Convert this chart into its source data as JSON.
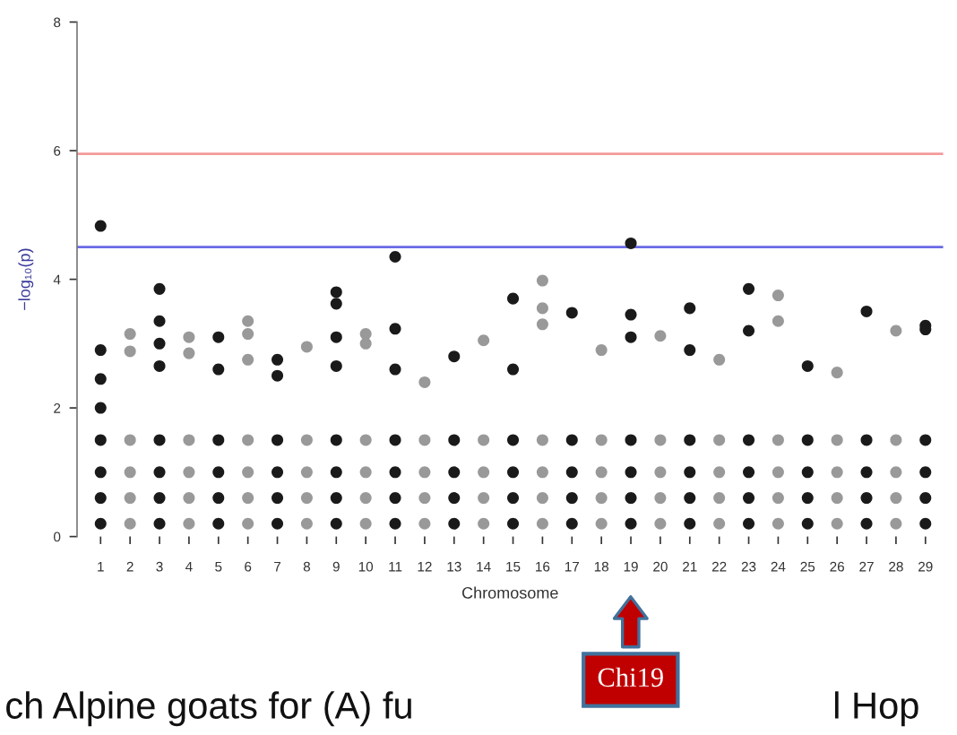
{
  "chart_data": {
    "type": "scatter",
    "xlabel": "Chromosome",
    "ylabel": "−log₁₀(p)",
    "categories": [
      "1",
      "2",
      "3",
      "4",
      "5",
      "6",
      "7",
      "8",
      "9",
      "10",
      "11",
      "12",
      "13",
      "14",
      "15",
      "16",
      "17",
      "18",
      "19",
      "20",
      "21",
      "22",
      "23",
      "24",
      "25",
      "26",
      "27",
      "28",
      "29"
    ],
    "ylim": [
      0,
      8
    ],
    "yticks": [
      0,
      2,
      4,
      6,
      8
    ],
    "marker": "circle",
    "grid": false,
    "legend": false,
    "ref_lines": [
      {
        "axis": "y",
        "value": 5.95,
        "color": "#f49a9a"
      },
      {
        "axis": "y",
        "value": 4.5,
        "color": "#6a6ae6"
      }
    ],
    "annotations": [
      "Chi19",
      "ch Alpine goats for (A) fu",
      "l Hop"
    ],
    "series": [
      {
        "color": "#1a1a1a",
        "x": [
          "1",
          "1",
          "1",
          "1",
          "1",
          "1",
          "1",
          "1",
          "3",
          "3",
          "3",
          "3",
          "3",
          "3",
          "3",
          "3",
          "5",
          "5",
          "5",
          "5",
          "5",
          "5",
          "7",
          "7",
          "7",
          "7",
          "7",
          "7",
          "9",
          "9",
          "9",
          "9",
          "9",
          "9",
          "9",
          "9",
          "11",
          "11",
          "11",
          "11",
          "11",
          "11",
          "11",
          "13",
          "13",
          "13",
          "13",
          "13",
          "15",
          "15",
          "15",
          "15",
          "15",
          "15",
          "17",
          "17",
          "17",
          "17",
          "17",
          "19",
          "19",
          "19",
          "19",
          "19",
          "19",
          "19",
          "21",
          "21",
          "21",
          "21",
          "21",
          "21",
          "23",
          "23",
          "23",
          "23",
          "23",
          "23",
          "25",
          "25",
          "25",
          "25",
          "25",
          "27",
          "27",
          "27",
          "27",
          "27",
          "29",
          "29",
          "29",
          "29",
          "29",
          "29"
        ],
        "values": [
          0.2,
          0.6,
          1.0,
          1.5,
          4.83,
          2.9,
          2.45,
          2.0,
          0.2,
          0.6,
          1.0,
          1.5,
          3.85,
          3.35,
          3.0,
          2.65,
          0.2,
          0.6,
          1.0,
          1.5,
          3.1,
          2.6,
          0.2,
          0.6,
          1.0,
          1.5,
          2.75,
          2.5,
          0.2,
          0.6,
          1.0,
          1.5,
          3.8,
          3.62,
          3.1,
          2.65,
          0.2,
          0.6,
          1.0,
          1.5,
          4.35,
          3.23,
          2.6,
          0.2,
          0.6,
          1.0,
          1.5,
          2.8,
          0.2,
          0.6,
          1.0,
          1.5,
          3.7,
          2.6,
          0.2,
          0.6,
          1.0,
          1.5,
          3.48,
          0.2,
          0.6,
          1.0,
          1.5,
          4.56,
          3.45,
          3.1,
          0.2,
          0.6,
          1.0,
          1.5,
          3.55,
          2.9,
          0.2,
          0.6,
          1.0,
          1.5,
          3.85,
          3.2,
          0.2,
          0.6,
          1.0,
          1.5,
          2.65,
          0.2,
          0.6,
          1.0,
          1.5,
          3.5,
          0.2,
          0.6,
          1.0,
          1.5,
          3.28,
          3.22
        ]
      },
      {
        "color": "#999999",
        "x": [
          "2",
          "2",
          "2",
          "2",
          "2",
          "2",
          "4",
          "4",
          "4",
          "4",
          "4",
          "4",
          "6",
          "6",
          "6",
          "6",
          "6",
          "6",
          "6",
          "8",
          "8",
          "8",
          "8",
          "8",
          "10",
          "10",
          "10",
          "10",
          "10",
          "10",
          "12",
          "12",
          "12",
          "12",
          "12",
          "14",
          "14",
          "14",
          "14",
          "14",
          "16",
          "16",
          "16",
          "16",
          "16",
          "16",
          "16",
          "18",
          "18",
          "18",
          "18",
          "18",
          "20",
          "20",
          "20",
          "20",
          "20",
          "22",
          "22",
          "22",
          "22",
          "22",
          "24",
          "24",
          "24",
          "24",
          "24",
          "24",
          "26",
          "26",
          "26",
          "26",
          "26",
          "28",
          "28",
          "28",
          "28",
          "28"
        ],
        "values": [
          0.2,
          0.6,
          1.0,
          1.5,
          3.15,
          2.88,
          0.2,
          0.6,
          1.0,
          1.5,
          3.1,
          2.85,
          0.2,
          0.6,
          1.0,
          1.5,
          3.35,
          3.15,
          2.75,
          0.2,
          0.6,
          1.0,
          1.5,
          2.95,
          0.2,
          0.6,
          1.0,
          1.5,
          3.15,
          3.0,
          0.2,
          0.6,
          1.0,
          1.5,
          2.4,
          0.2,
          0.6,
          1.0,
          1.5,
          3.05,
          0.2,
          0.6,
          1.0,
          1.5,
          3.98,
          3.55,
          3.3,
          0.2,
          0.6,
          1.0,
          1.5,
          2.9,
          0.2,
          0.6,
          1.0,
          1.5,
          3.12,
          0.2,
          0.6,
          1.0,
          1.5,
          2.75,
          0.2,
          0.6,
          1.0,
          1.5,
          3.75,
          3.35,
          0.2,
          0.6,
          1.0,
          1.5,
          2.55,
          0.2,
          0.6,
          1.0,
          1.5,
          3.2
        ]
      }
    ]
  }
}
